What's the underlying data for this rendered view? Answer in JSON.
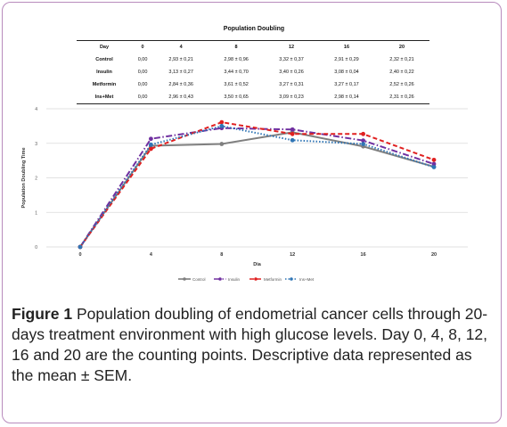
{
  "table": {
    "title": "Population Doubling",
    "header_label": "Day",
    "days": [
      "0",
      "4",
      "8",
      "12",
      "16",
      "20"
    ],
    "rows": [
      {
        "label": "Control",
        "cells": [
          "0,00",
          "2,93 ± 0,21",
          "2,98 ± 0,96",
          "3,32 ± 0,37",
          "2,91 ± 0,29",
          "2,32 ± 0,21"
        ]
      },
      {
        "label": "Insulin",
        "cells": [
          "0,00",
          "3,13 ± 0,27",
          "3,44 ± 0,70",
          "3,40 ± 0,26",
          "3,08 ± 0,04",
          "2,40 ± 0,22"
        ]
      },
      {
        "label": "Metformin",
        "cells": [
          "0,00",
          "2,84 ± 0,36",
          "3,61 ± 0,52",
          "3,27 ± 0,31",
          "3,27 ± 0,17",
          "2,52 ± 0,26"
        ]
      },
      {
        "label": "Ins+Met",
        "cells": [
          "0,00",
          "2,96 ± 0,43",
          "3,50 ± 0,65",
          "3,09 ± 0,23",
          "2,98 ± 0,14",
          "2,31 ± 0,26"
        ]
      }
    ]
  },
  "chart_data": {
    "type": "line",
    "x": [
      0,
      4,
      8,
      12,
      16,
      20
    ],
    "xlabel": "Dia",
    "ylabel": "Population Doubling Time",
    "ylim": [
      0,
      4
    ],
    "yticks": [
      0,
      1,
      2,
      3,
      4
    ],
    "grid": true,
    "legend_position": "bottom",
    "series": [
      {
        "name": "Control",
        "color": "#7f7f7f",
        "dash": "solid",
        "values": [
          0,
          2.93,
          2.98,
          3.32,
          2.91,
          2.32
        ]
      },
      {
        "name": "Insulin",
        "color": "#7030a0",
        "dash": "dashdot",
        "values": [
          0,
          3.13,
          3.44,
          3.4,
          3.08,
          2.4
        ]
      },
      {
        "name": "Metformin",
        "color": "#e02020",
        "dash": "dash",
        "values": [
          0,
          2.84,
          3.61,
          3.27,
          3.27,
          2.52
        ]
      },
      {
        "name": "Ins+Met",
        "color": "#2f75b5",
        "dash": "dot",
        "values": [
          0,
          2.96,
          3.5,
          3.09,
          2.98,
          2.31
        ]
      }
    ]
  },
  "caption": {
    "label": "Figure 1",
    "text": "Population doubling of endometrial cancer cells through 20-days treatment environment with high glucose levels. Day 0, 4, 8, 12, 16 and 20 are the counting points. Descriptive data represented as the mean ± SEM."
  }
}
